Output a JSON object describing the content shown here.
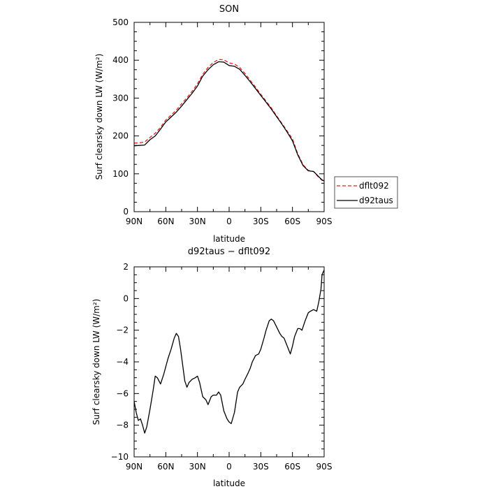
{
  "chart_data": [
    {
      "type": "line",
      "title": "SON",
      "xlabel": "latitude",
      "ylabel": "Surf clearsky down LW (W/m²)",
      "xlim": [
        90,
        -90
      ],
      "ylim": [
        0,
        500
      ],
      "xticks": [
        90,
        60,
        30,
        0,
        -30,
        -60,
        -90
      ],
      "xtick_labels": [
        "90N",
        "60N",
        "30N",
        "0",
        "30S",
        "60S",
        "90S"
      ],
      "yticks": [
        0,
        100,
        200,
        300,
        400,
        500
      ],
      "ytick_labels": [
        "0",
        "100",
        "200",
        "300",
        "400",
        "500"
      ],
      "legend": {
        "placement": "right",
        "entries": [
          "dflt092",
          "d92taus"
        ]
      },
      "x": [
        90,
        85,
        80,
        75,
        70,
        65,
        60,
        55,
        50,
        45,
        40,
        35,
        30,
        25,
        20,
        15,
        10,
        5,
        0,
        -5,
        -10,
        -15,
        -20,
        -25,
        -30,
        -35,
        -40,
        -45,
        -50,
        -55,
        -60,
        -65,
        -70,
        -75,
        -80,
        -85,
        -88,
        -90
      ],
      "series": [
        {
          "name": "dflt092",
          "color": "#e02020",
          "dash": "dashed",
          "values": [
            181,
            182,
            184,
            196,
            207,
            223,
            242,
            255,
            268,
            285,
            301,
            318,
            338,
            363,
            381,
            394,
            402,
            401,
            393,
            390,
            381,
            365,
            347,
            329,
            310,
            292,
            274,
            253,
            233,
            213,
            192,
            153,
            124,
            109,
            106,
            90,
            83,
            80
          ]
        },
        {
          "name": "d92taus",
          "color": "#000000",
          "dash": "solid",
          "values": [
            174,
            175,
            176,
            190,
            200,
            218,
            237,
            250,
            263,
            279,
            296,
            313,
            332,
            358,
            375,
            388,
            396,
            395,
            386,
            384,
            376,
            360,
            343,
            325,
            307,
            289,
            271,
            251,
            231,
            210,
            187,
            150,
            122,
            108,
            106,
            92,
            84,
            81
          ]
        }
      ]
    },
    {
      "type": "line",
      "title": "d92taus − dflt092",
      "xlabel": "latitude",
      "ylabel": "Surf clearsky down LW (W/m²)",
      "xlim": [
        90,
        -90
      ],
      "ylim": [
        -10,
        2
      ],
      "xticks": [
        90,
        60,
        30,
        0,
        -30,
        -60,
        -90
      ],
      "xtick_labels": [
        "90N",
        "60N",
        "30N",
        "0",
        "30S",
        "60S",
        "90S"
      ],
      "yticks": [
        -10,
        -8,
        -6,
        -4,
        -2,
        0,
        2
      ],
      "ytick_labels": [
        "−10",
        "−8",
        "−6",
        "−4",
        "−2",
        "0",
        "2"
      ],
      "x": [
        90,
        88,
        86,
        84,
        82,
        80,
        78,
        75,
        72,
        70,
        68,
        65,
        62,
        58,
        55,
        52,
        50,
        48,
        46,
        44,
        42,
        40,
        38,
        35,
        32,
        30,
        28,
        25,
        22,
        20,
        17,
        15,
        12,
        10,
        8,
        5,
        2,
        0,
        -2,
        -5,
        -8,
        -10,
        -13,
        -15,
        -18,
        -20,
        -22,
        -25,
        -28,
        -30,
        -33,
        -35,
        -38,
        -40,
        -42,
        -45,
        -48,
        -50,
        -52,
        -55,
        -58,
        -60,
        -62,
        -65,
        -67,
        -69,
        -72,
        -75,
        -77,
        -80,
        -83,
        -85,
        -87,
        -88,
        -90
      ],
      "series": [
        {
          "name": "",
          "color": "#000000",
          "dash": "solid",
          "values": [
            -6.5,
            -7.2,
            -7.7,
            -7.6,
            -8.0,
            -8.5,
            -8.1,
            -7.0,
            -5.8,
            -4.9,
            -5.0,
            -5.4,
            -4.8,
            -3.8,
            -3.2,
            -2.5,
            -2.2,
            -2.4,
            -3.2,
            -4.2,
            -5.2,
            -5.6,
            -5.3,
            -5.1,
            -5.0,
            -4.9,
            -5.3,
            -6.2,
            -6.4,
            -6.7,
            -6.2,
            -6.1,
            -6.1,
            -5.9,
            -6.1,
            -7.1,
            -7.6,
            -7.8,
            -7.9,
            -7.2,
            -5.9,
            -5.6,
            -5.4,
            -5.1,
            -4.7,
            -4.4,
            -4.0,
            -3.6,
            -3.5,
            -3.2,
            -2.5,
            -2.0,
            -1.4,
            -1.3,
            -1.4,
            -1.8,
            -2.2,
            -2.4,
            -2.5,
            -3.0,
            -3.5,
            -3.0,
            -2.4,
            -1.9,
            -1.9,
            -2.0,
            -1.4,
            -0.9,
            -0.8,
            -0.7,
            -0.8,
            -0.2,
            0.6,
            1.5,
            1.8
          ]
        }
      ]
    }
  ]
}
